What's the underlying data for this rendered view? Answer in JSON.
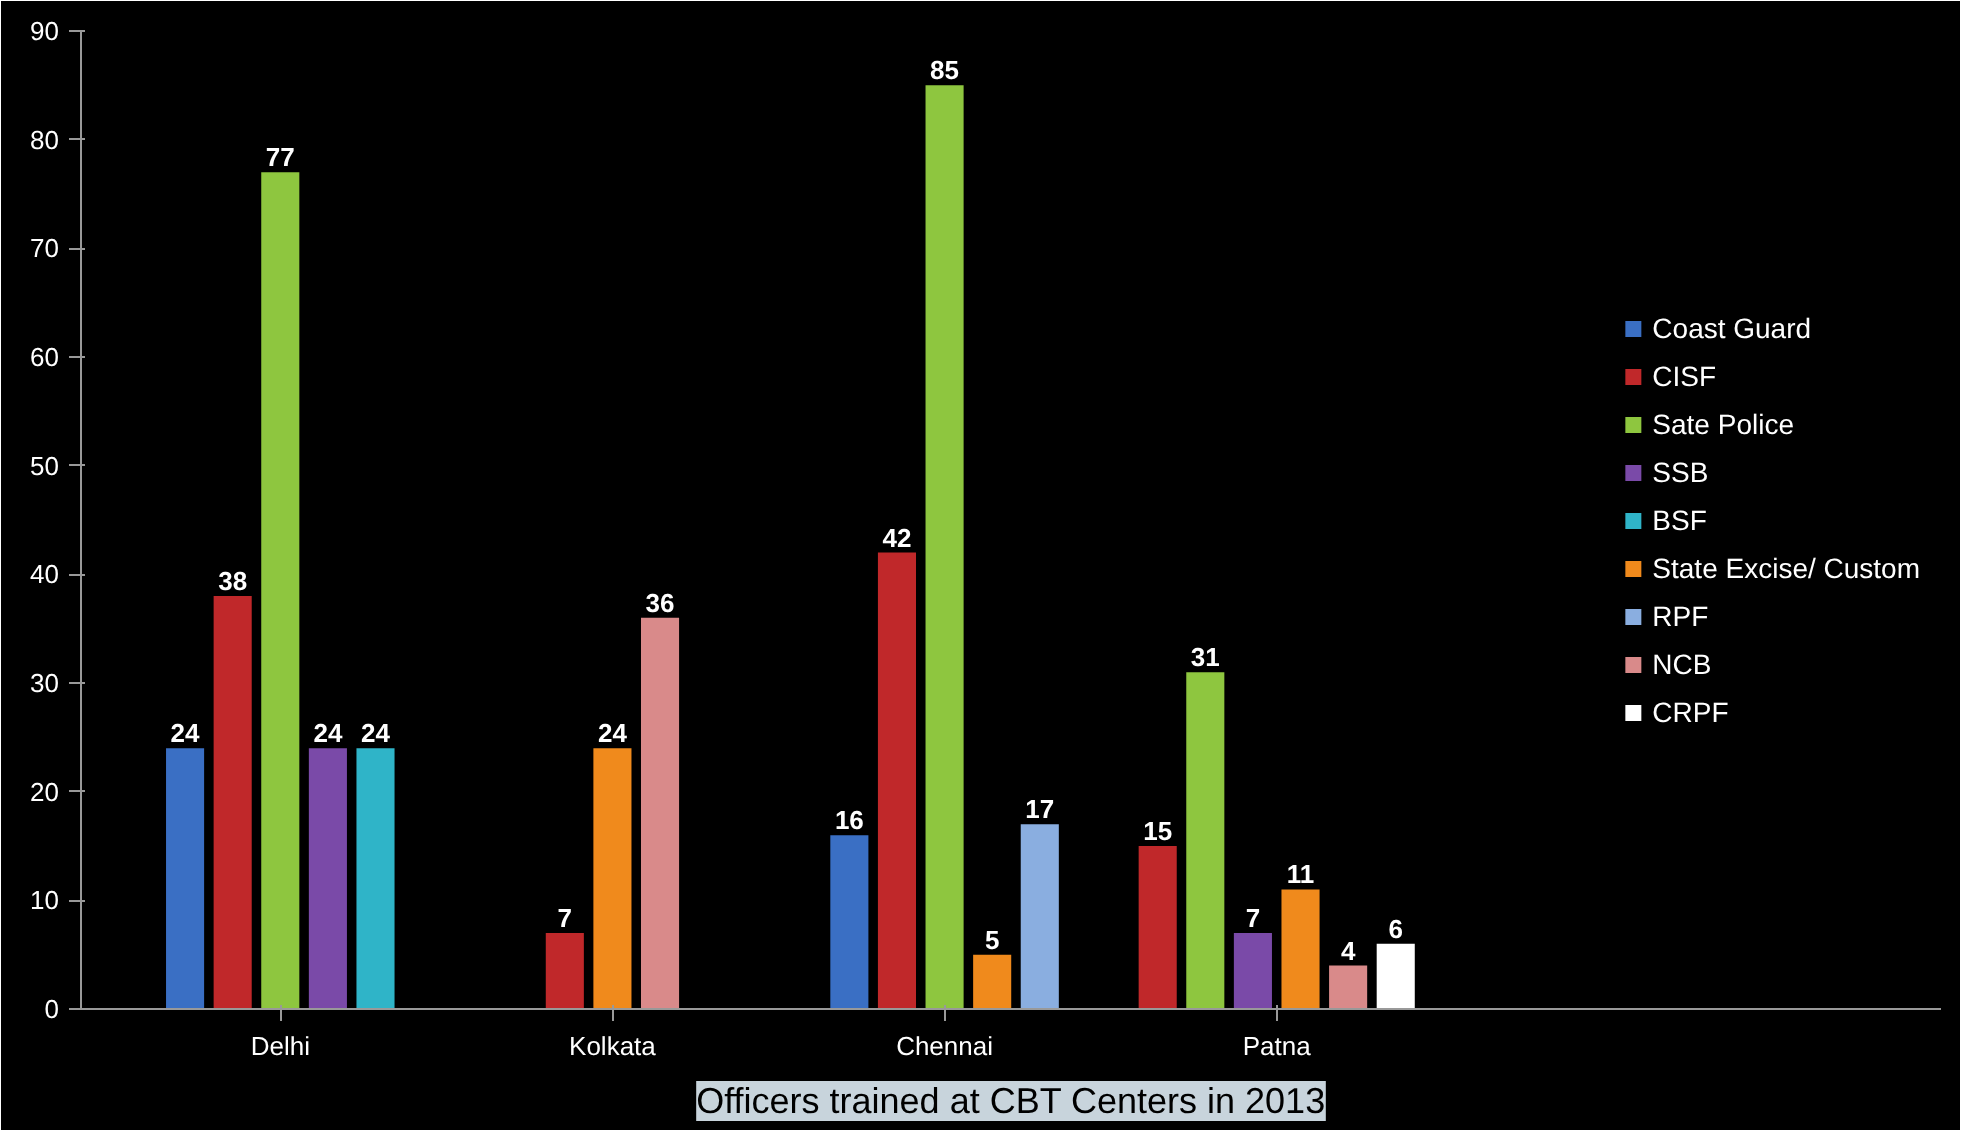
{
  "chart_data": {
    "type": "bar",
    "title": "Officers trained at CBT Centers in 2013",
    "categories": [
      "Delhi",
      "Kolkata",
      "Chennai",
      "Patna"
    ],
    "series": [
      {
        "name": "Coast Guard",
        "color": "#3a6fc4",
        "values": [
          24,
          null,
          16,
          null
        ]
      },
      {
        "name": "CISF",
        "color": "#c0282a",
        "values": [
          38,
          7,
          42,
          15
        ]
      },
      {
        "name": "Sate Police",
        "color": "#8ec63f",
        "values": [
          77,
          null,
          85,
          31
        ]
      },
      {
        "name": "SSB",
        "color": "#7a4aa8",
        "values": [
          24,
          null,
          null,
          7
        ]
      },
      {
        "name": "BSF",
        "color": "#2fb4c8",
        "values": [
          24,
          null,
          null,
          null
        ]
      },
      {
        "name": "State Excise/ Custom",
        "color": "#f08a1c",
        "values": [
          null,
          24,
          5,
          11
        ]
      },
      {
        "name": "RPF",
        "color": "#8aaee0",
        "values": [
          null,
          null,
          17,
          null
        ]
      },
      {
        "name": "NCB",
        "color": "#d98a8a",
        "values": [
          null,
          36,
          null,
          4
        ]
      },
      {
        "name": "CRPF",
        "color": "#ffffff",
        "values": [
          null,
          null,
          null,
          6
        ]
      }
    ],
    "ylim": [
      0,
      90
    ],
    "yticks": [
      0,
      10,
      20,
      30,
      40,
      50,
      60,
      70,
      80,
      90
    ],
    "grid": false,
    "legend": "right",
    "data_labels": true
  }
}
